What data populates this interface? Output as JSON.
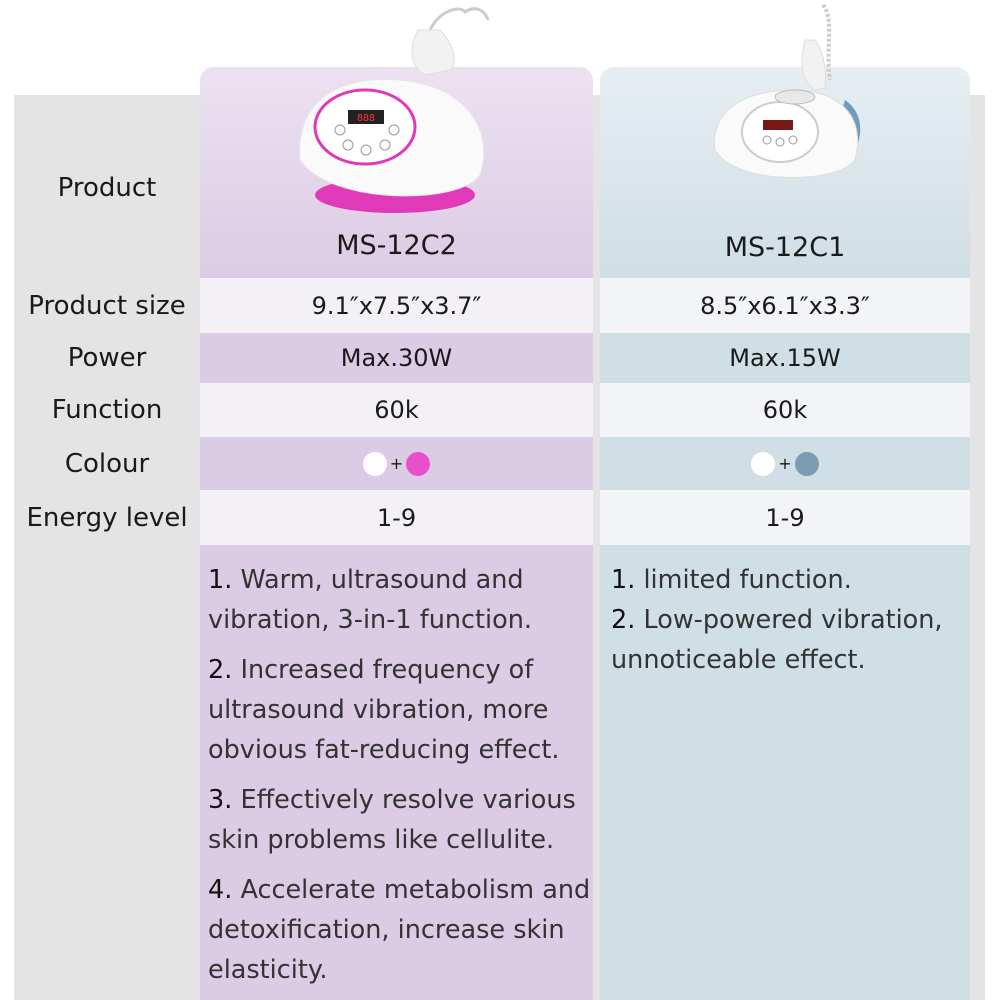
{
  "labels": {
    "product": "Product",
    "size": "Product size",
    "power": "Power",
    "function": "Function",
    "colour": "Colour",
    "energy": "Energy level"
  },
  "products": [
    {
      "model": "MS-12C2",
      "size": "9.1″x7.5″x3.7″",
      "power": "Max.30W",
      "function": "60k",
      "colours": [
        "#ffffff",
        "#e84fcb"
      ],
      "plus": "+",
      "energy": "1-9",
      "features": [
        {
          "num": "1.",
          "text": "Warm, ultrasound and vibration, 3-in-1 function."
        },
        {
          "num": "2.",
          "text": "Increased frequency of ultrasound vibration, more obvious fat-reducing effect."
        },
        {
          "num": "3.",
          "text": "Effectively resolve various skin problems like cellulite."
        },
        {
          "num": "4.",
          "text": "Accelerate metabolism and detoxification, increase skin elasticity."
        }
      ]
    },
    {
      "model": "MS-12C1",
      "size": "8.5″x6.1″x3.3″",
      "power": "Max.15W",
      "function": "60k",
      "colours": [
        "#ffffff",
        "#7a9db3"
      ],
      "plus": "+",
      "energy": "1-9",
      "features": [
        {
          "num": "1.",
          "text": "limited function."
        },
        {
          "num": "2.",
          "text": "Low-powered vibration, unnoticeable effect."
        }
      ]
    }
  ]
}
